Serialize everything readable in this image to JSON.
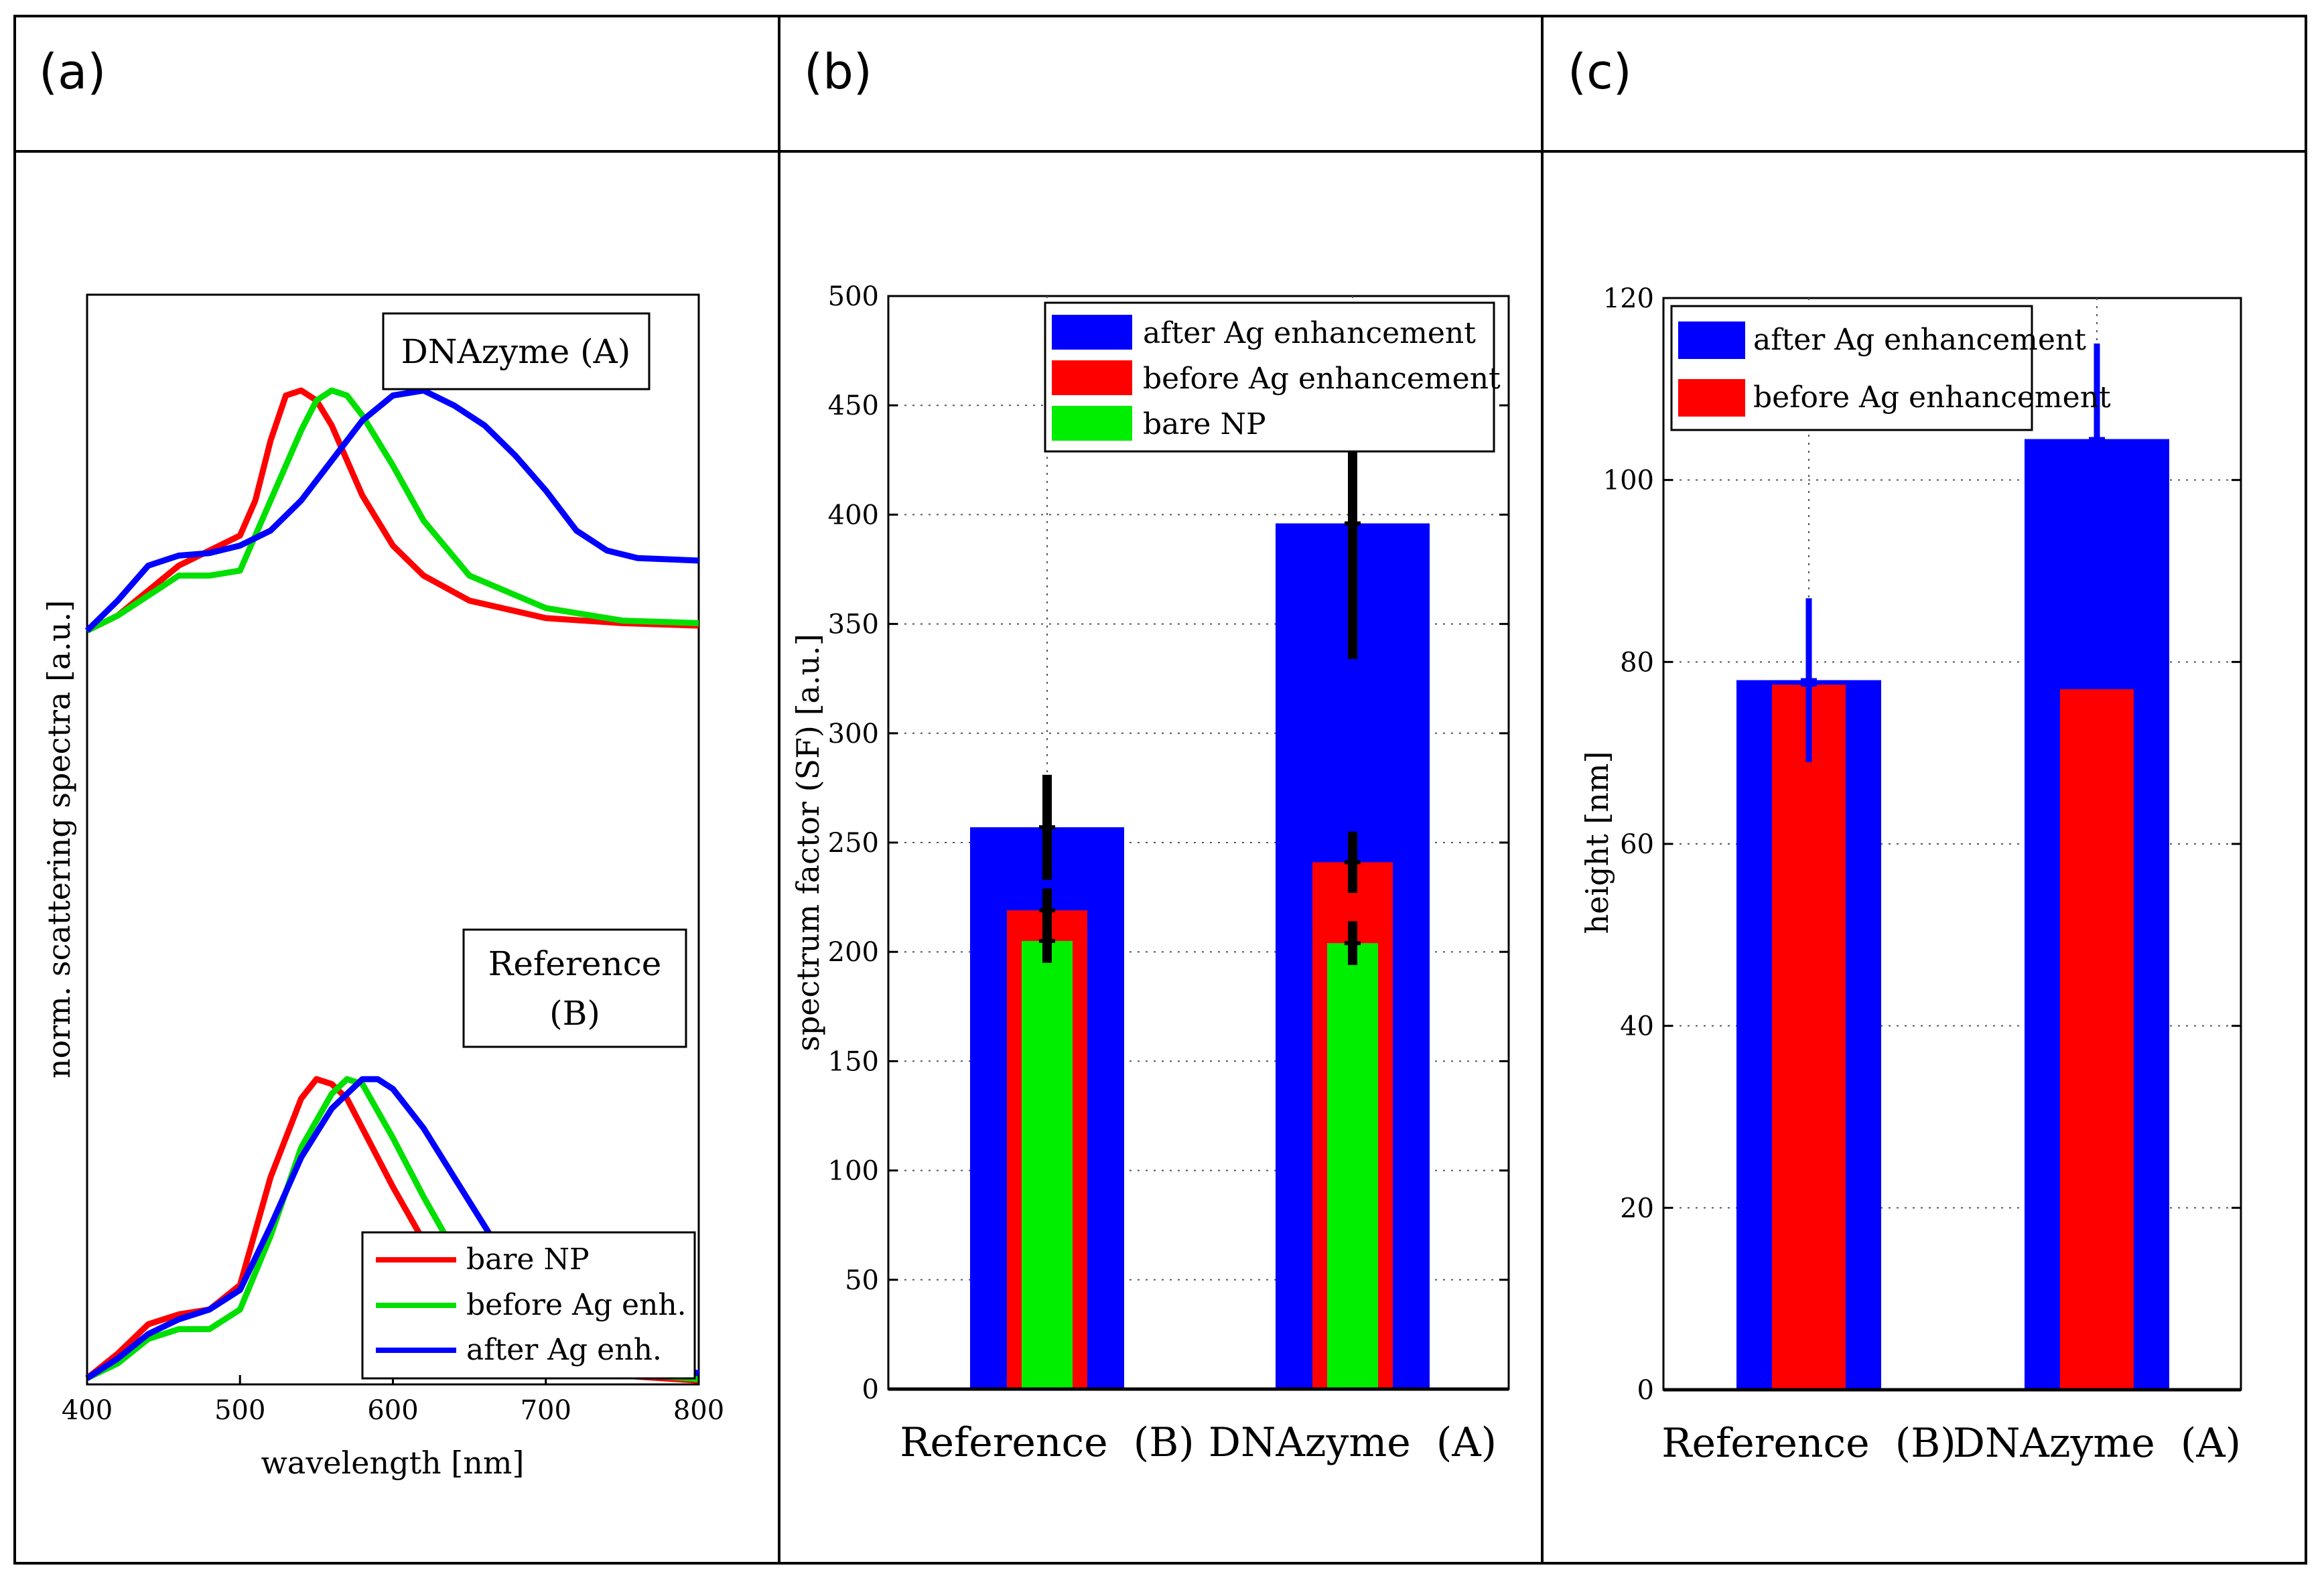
{
  "panels": {
    "a": {
      "label": "(a)"
    },
    "b": {
      "label": "(b)"
    },
    "c": {
      "label": "(c)"
    }
  },
  "chart_data": [
    {
      "panel": "a",
      "type": "line",
      "title": "",
      "xlabel": "wavelength [nm]",
      "ylabel": "norm. scattering spectra [a.u.]",
      "xlim": [
        400,
        800
      ],
      "xticks": [
        400,
        500,
        600,
        700,
        800
      ],
      "ylim": [
        0,
        1
      ],
      "grid": false,
      "annotations": [
        "DNAzyme (A)",
        "Reference",
        "(B)"
      ],
      "legend": {
        "position": "bottom-right",
        "entries": [
          {
            "label": "bare NP",
            "color": "#ff0000"
          },
          {
            "label": "before Ag enh.",
            "color": "#00e000"
          },
          {
            "label": "after Ag enh.",
            "color": "#0000ff"
          }
        ]
      },
      "groups": [
        {
          "name": "DNAzyme (A)",
          "series": [
            {
              "name": "bare NP",
              "color": "#ff0000",
              "x": [
                400,
                420,
                440,
                460,
                480,
                500,
                510,
                520,
                530,
                540,
                550,
                560,
                580,
                600,
                620,
                650,
                700,
                750,
                800
              ],
              "y": [
                0.52,
                0.55,
                0.6,
                0.65,
                0.68,
                0.71,
                0.78,
                0.9,
                0.99,
                1.0,
                0.98,
                0.93,
                0.79,
                0.69,
                0.63,
                0.58,
                0.545,
                0.535,
                0.53
              ]
            },
            {
              "name": "before Ag enh.",
              "color": "#00e000",
              "x": [
                400,
                420,
                440,
                460,
                480,
                500,
                520,
                540,
                550,
                560,
                570,
                580,
                600,
                620,
                650,
                700,
                750,
                800
              ],
              "y": [
                0.52,
                0.55,
                0.59,
                0.63,
                0.63,
                0.64,
                0.78,
                0.92,
                0.98,
                1.0,
                0.99,
                0.95,
                0.85,
                0.74,
                0.63,
                0.565,
                0.54,
                0.535
              ]
            },
            {
              "name": "after Ag enh.",
              "color": "#0000ff",
              "x": [
                400,
                420,
                440,
                460,
                480,
                500,
                520,
                540,
                560,
                580,
                600,
                620,
                640,
                660,
                680,
                700,
                720,
                740,
                760,
                800
              ],
              "y": [
                0.52,
                0.58,
                0.65,
                0.67,
                0.675,
                0.69,
                0.72,
                0.78,
                0.86,
                0.94,
                0.99,
                1.0,
                0.97,
                0.93,
                0.87,
                0.8,
                0.72,
                0.68,
                0.665,
                0.66
              ]
            }
          ]
        },
        {
          "name": "Reference (B)",
          "series": [
            {
              "name": "bare NP",
              "color": "#ff0000",
              "x": [
                400,
                420,
                440,
                460,
                480,
                500,
                520,
                540,
                550,
                560,
                570,
                580,
                600,
                620,
                640,
                660,
                680,
                700,
                750,
                800
              ],
              "y": [
                0.01,
                0.06,
                0.12,
                0.14,
                0.15,
                0.2,
                0.42,
                0.58,
                0.62,
                0.61,
                0.58,
                0.52,
                0.4,
                0.29,
                0.2,
                0.12,
                0.07,
                0.04,
                0.015,
                0.005
              ]
            },
            {
              "name": "before Ag enh.",
              "color": "#00e000",
              "x": [
                400,
                420,
                440,
                460,
                480,
                500,
                520,
                540,
                560,
                570,
                580,
                600,
                620,
                640,
                660,
                680,
                700,
                750,
                800
              ],
              "y": [
                0.01,
                0.04,
                0.09,
                0.11,
                0.11,
                0.15,
                0.3,
                0.48,
                0.59,
                0.62,
                0.61,
                0.5,
                0.38,
                0.27,
                0.17,
                0.1,
                0.06,
                0.02,
                0.008
              ]
            },
            {
              "name": "after Ag enh.",
              "color": "#0000ff",
              "x": [
                400,
                420,
                440,
                460,
                480,
                500,
                520,
                540,
                560,
                580,
                590,
                600,
                620,
                640,
                660,
                680,
                700,
                750,
                800
              ],
              "y": [
                0.01,
                0.05,
                0.1,
                0.13,
                0.15,
                0.19,
                0.32,
                0.46,
                0.56,
                0.62,
                0.62,
                0.6,
                0.52,
                0.42,
                0.32,
                0.22,
                0.14,
                0.05,
                0.02
              ]
            }
          ]
        }
      ]
    },
    {
      "panel": "b",
      "type": "bar",
      "title": "",
      "xlabel": "",
      "ylabel": "spectrum factor (SF) [a.u.]",
      "categories": [
        "Reference  (B)",
        "DNAzyme  (A)"
      ],
      "ylim": [
        0,
        500
      ],
      "yticks": [
        0,
        50,
        100,
        150,
        200,
        250,
        300,
        350,
        400,
        450,
        500
      ],
      "grid": true,
      "legend": {
        "position": "top-right"
      },
      "series": [
        {
          "name": "after Ag enhancement",
          "color": "#0000ff",
          "values": [
            257,
            396
          ],
          "errors": [
            24,
            62
          ]
        },
        {
          "name": "before Ag enhancement",
          "color": "#ff0000",
          "values": [
            219,
            241
          ],
          "errors": [
            10,
            14
          ]
        },
        {
          "name": "bare NP",
          "color": "#00ee00",
          "values": [
            205,
            204
          ],
          "errors": [
            10,
            10
          ]
        }
      ]
    },
    {
      "panel": "c",
      "type": "bar",
      "title": "",
      "xlabel": "",
      "ylabel": "height [nm]",
      "categories": [
        "Reference  (B)",
        "DNAzyme  (A)"
      ],
      "ylim": [
        0,
        120
      ],
      "yticks": [
        0,
        20,
        40,
        60,
        80,
        100,
        120
      ],
      "grid": true,
      "legend": {
        "position": "top-left"
      },
      "series": [
        {
          "name": "after Ag enhancement",
          "color": "#0000ff",
          "values": [
            78,
            104.5
          ],
          "errors": [
            9,
            10.5
          ]
        },
        {
          "name": "before Ag enhancement",
          "color": "#ff0000",
          "values": [
            77.5,
            77
          ],
          "errors": [
            8.5,
            0
          ]
        }
      ]
    }
  ]
}
